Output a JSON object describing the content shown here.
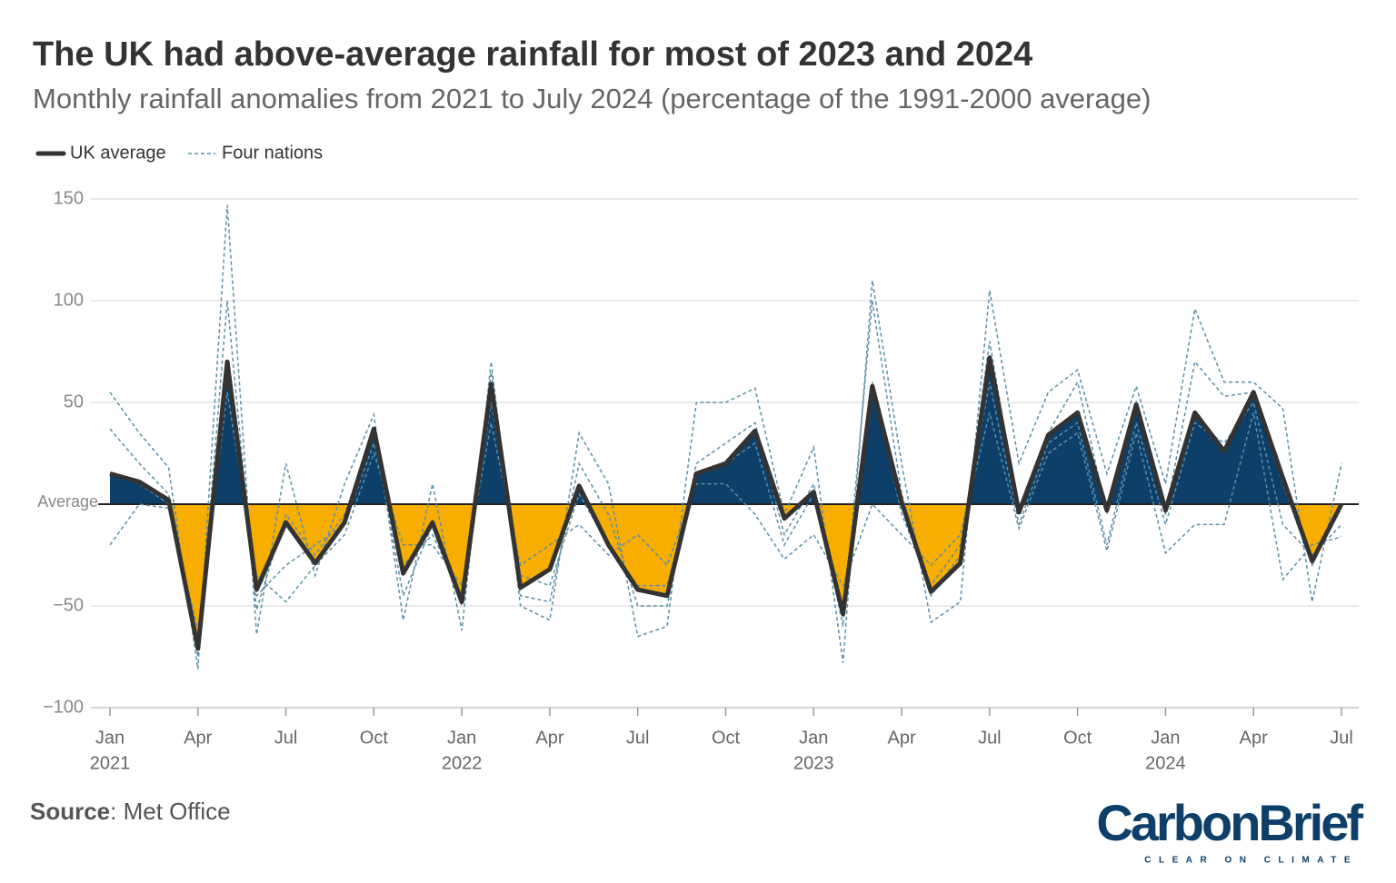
{
  "chart_data": {
    "type": "line",
    "title": "The UK had above-average rainfall for most of 2023 and 2024",
    "subtitle": "Monthly rainfall anomalies from 2021 to July 2024 (percentage of the 1991-2000 average)",
    "source_label": "Source",
    "source_text": ": Met Office",
    "logo": "CarbonBrief",
    "logo_tagline": "CLEAR ON CLIMATE",
    "x": [
      "2021-01",
      "2021-02",
      "2021-03",
      "2021-04",
      "2021-05",
      "2021-06",
      "2021-07",
      "2021-08",
      "2021-09",
      "2021-10",
      "2021-11",
      "2021-12",
      "2022-01",
      "2022-02",
      "2022-03",
      "2022-04",
      "2022-05",
      "2022-06",
      "2022-07",
      "2022-08",
      "2022-09",
      "2022-10",
      "2022-11",
      "2022-12",
      "2023-01",
      "2023-02",
      "2023-03",
      "2023-04",
      "2023-05",
      "2023-06",
      "2023-07",
      "2023-08",
      "2023-09",
      "2023-10",
      "2023-11",
      "2023-12",
      "2024-01",
      "2024-02",
      "2024-03",
      "2024-04",
      "2024-05",
      "2024-06",
      "2024-07"
    ],
    "xticks": [
      {
        "value": "2021-01",
        "label": "Jan",
        "year": "2021"
      },
      {
        "value": "2021-04",
        "label": "Apr"
      },
      {
        "value": "2021-07",
        "label": "Jul"
      },
      {
        "value": "2021-10",
        "label": "Oct"
      },
      {
        "value": "2022-01",
        "label": "Jan",
        "year": "2022"
      },
      {
        "value": "2022-04",
        "label": "Apr"
      },
      {
        "value": "2022-07",
        "label": "Jul"
      },
      {
        "value": "2022-10",
        "label": "Oct"
      },
      {
        "value": "2023-01",
        "label": "Jan",
        "year": "2023"
      },
      {
        "value": "2023-04",
        "label": "Apr"
      },
      {
        "value": "2023-07",
        "label": "Jul"
      },
      {
        "value": "2023-10",
        "label": "Oct"
      },
      {
        "value": "2024-01",
        "label": "Jan",
        "year": "2024"
      },
      {
        "value": "2024-04",
        "label": "Apr"
      },
      {
        "value": "2024-07",
        "label": "Jul"
      }
    ],
    "ylim": [
      -100,
      150
    ],
    "yticks": [
      {
        "value": -100,
        "label": "−100"
      },
      {
        "value": -50,
        "label": "−50"
      },
      {
        "value": 0,
        "label": "Average"
      },
      50,
      100,
      150
    ],
    "grid": true,
    "above_color": "#0d3f69",
    "below_color": "#f7ae00",
    "series": [
      {
        "name": "UK average",
        "color": "#333333",
        "values": [
          15,
          11,
          2,
          -71,
          70,
          -42,
          -9,
          -29,
          -9,
          37,
          -34,
          -9,
          -48,
          59,
          -41,
          -32,
          9,
          -20,
          -42,
          -45,
          15,
          20,
          36,
          -7,
          6,
          -54,
          58,
          1,
          -43,
          -29,
          72,
          -4,
          34,
          45,
          -3,
          49,
          -3,
          45,
          26,
          55,
          13,
          -28,
          0
        ]
      },
      {
        "name": "Four nations",
        "color": "#5b8fa8",
        "lines": [
          [
            55,
            35,
            18,
            -81,
            147,
            -64,
            20,
            -35,
            10,
            44,
            -57,
            10,
            -62,
            70,
            -50,
            -57,
            35,
            10,
            -65,
            -60,
            50,
            50,
            57,
            -5,
            28,
            -78,
            110,
            20,
            -58,
            -48,
            105,
            20,
            55,
            66,
            15,
            58,
            10,
            96,
            60,
            60,
            47,
            -48,
            20
          ],
          [
            37,
            20,
            5,
            -75,
            100,
            -52,
            -5,
            -25,
            -5,
            35,
            -45,
            -10,
            -50,
            65,
            -45,
            -48,
            20,
            -5,
            -50,
            -50,
            20,
            30,
            40,
            -15,
            10,
            -60,
            100,
            5,
            -45,
            -25,
            80,
            -5,
            35,
            60,
            -5,
            50,
            -5,
            70,
            53,
            55,
            10,
            -30,
            0
          ],
          [
            15,
            10,
            0,
            -68,
            70,
            -45,
            -30,
            -20,
            -10,
            30,
            -30,
            -15,
            -45,
            50,
            -35,
            -40,
            5,
            -20,
            -40,
            -40,
            15,
            20,
            30,
            -20,
            5,
            -50,
            60,
            -5,
            -40,
            -20,
            60,
            -10,
            30,
            40,
            -20,
            40,
            -10,
            40,
            30,
            50,
            -10,
            -25,
            -10
          ],
          [
            -20,
            0,
            -2,
            -62,
            55,
            -35,
            -48,
            -30,
            -15,
            25,
            -20,
            -20,
            -40,
            40,
            -30,
            -20,
            -10,
            -25,
            -15,
            -30,
            10,
            10,
            -5,
            -27,
            -15,
            -40,
            0,
            -15,
            -30,
            -15,
            45,
            -12,
            25,
            35,
            -23,
            35,
            -24,
            -10,
            -10,
            45,
            -37,
            -20,
            -16
          ]
        ]
      }
    ]
  }
}
